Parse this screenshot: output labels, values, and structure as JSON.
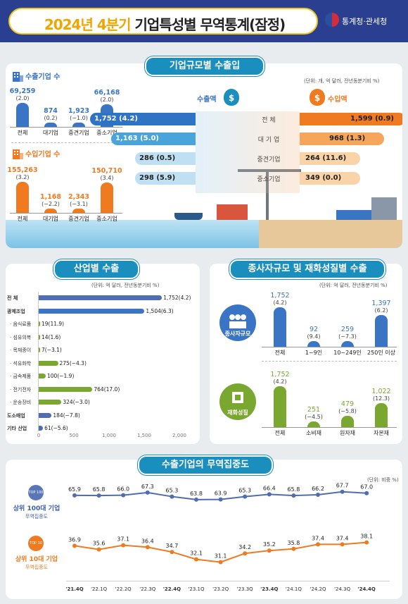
{
  "header": {
    "title_year": "2024년 4분기",
    "title_rest": "기업특성별 무역통계(잠정)",
    "agency": "통계청·관세청"
  },
  "size_section": {
    "title": "기업규모별 수출입",
    "unit": "(단위: 개, 억 달러, 전년동분기비 %)",
    "export_count_label": "수출기업 수",
    "import_count_label": "수입기업 수",
    "export_counts": [
      {
        "value": "69,259",
        "change": "(2.0)",
        "label": "전체"
      },
      {
        "value": "874",
        "change": "(0.2)",
        "label": "대기업"
      },
      {
        "value": "1,923",
        "change": "(−1.0)",
        "label": "중견기업"
      },
      {
        "value": "66,168",
        "change": "(2.0)",
        "label": "중소기업"
      }
    ],
    "import_counts": [
      {
        "value": "155,263",
        "change": "(3.2)",
        "label": "전체"
      },
      {
        "value": "1,168",
        "change": "(−2.2)",
        "label": "대기업"
      },
      {
        "value": "2,343",
        "change": "(−3.1)",
        "label": "중견기업"
      },
      {
        "value": "150,710",
        "change": "(3.4)",
        "label": "중소기업"
      }
    ],
    "export_amount_label": "수출액",
    "import_amount_label": "수입액",
    "rows": [
      {
        "label": "전  체",
        "export": "1,752",
        "export_change": "(4.2)",
        "import": "1,599",
        "import_change": "(0.9)"
      },
      {
        "label": "대 기 업",
        "export": "1,163",
        "export_change": "(5.0)",
        "import": "968",
        "import_change": "(1.3)"
      },
      {
        "label": "중견기업",
        "export": "286",
        "export_change": "(0.5)",
        "import": "264",
        "import_change": "(11.6)"
      },
      {
        "label": "중소기업",
        "export": "298",
        "export_change": "(5.9)",
        "import": "349",
        "import_change": "(0.0)"
      }
    ]
  },
  "industry_section": {
    "title": "산업별 수출",
    "unit": "(단위: 억 달러, 전년동분기비 %)",
    "axis_ticks": [
      "0",
      "500",
      "1,000",
      "1,500",
      "2,000"
    ]
  },
  "chart_data": [
    {
      "type": "bar",
      "title": "산업별 수출",
      "categories": [
        "전  체",
        "광제조업",
        "· 음식료품",
        "· 섬유의복",
        "· 목재종이",
        "· 석유화학",
        "· 금속제품",
        "· 전기전자",
        "· 운송장비",
        "도소매업",
        "기타 산업"
      ],
      "values": [
        1752,
        1504,
        19,
        14,
        7,
        275,
        100,
        764,
        324,
        184,
        61
      ],
      "value_labels": [
        "1,752(4.2)",
        "1,504(6.3)",
        "19(11.9)",
        "14(1.6)",
        "7(−3.1)",
        "275(−4.3)",
        "100(−1.9)",
        "764(17.0)",
        "324(−3.0)",
        "184(−7.8)",
        "61(−5.6)"
      ],
      "xlim": [
        0,
        2000
      ]
    },
    {
      "type": "bar",
      "title": "종사자규모",
      "categories": [
        "전체",
        "1~9인",
        "10~249인",
        "250인 이상"
      ],
      "values": [
        1752,
        92,
        259,
        1397
      ],
      "value_labels": [
        "1,752",
        "92",
        "259",
        "1,397"
      ],
      "changes": [
        "(4.2)",
        "(9.4)",
        "(−7.3)",
        "(6.2)"
      ]
    },
    {
      "type": "bar",
      "title": "재화성질",
      "categories": [
        "전체",
        "소비재",
        "원자재",
        "자본재"
      ],
      "values": [
        1752,
        251,
        479,
        1022
      ],
      "value_labels": [
        "1,752",
        "251",
        "479",
        "1,022"
      ],
      "changes": [
        "(4.2)",
        "(−4.5)",
        "(−5.8)",
        "(12.3)"
      ]
    },
    {
      "type": "line",
      "title": "수출기업의 무역집중도",
      "x": [
        "'21.4Q",
        "'22.1Q",
        "'22.2Q",
        "'22.3Q",
        "'22.4Q",
        "'23.1Q",
        "'23.2Q",
        "'23.3Q",
        "'23.4Q",
        "'24.1Q",
        "'24.2Q",
        "'24.3Q",
        "'24.4Q"
      ],
      "series": [
        {
          "name": "상위 100대 기업",
          "values": [
            65.9,
            65.8,
            66.0,
            67.3,
            65.3,
            63.8,
            63.9,
            65.3,
            66.4,
            65.8,
            66.2,
            67.7,
            67.0
          ]
        },
        {
          "name": "상위 10대 기업",
          "values": [
            36.9,
            35.6,
            37.1,
            36.4,
            34.7,
            32.1,
            31.1,
            34.2,
            35.2,
            35.8,
            37.4,
            37.4,
            38.1
          ]
        }
      ]
    }
  ],
  "employee_section": {
    "title": "종사자규모 및 재화성질별 수출",
    "unit": "(단위: 억 달러, 전년동분기비 %)",
    "badge1": "종사자규모",
    "badge2": "재화성질"
  },
  "concentration_section": {
    "title": "수출기업의 무역집중도",
    "unit": "(단위: 비중 %)",
    "top100_label": "상위 100대 기업",
    "top100_sub": "무역집중도",
    "top10_label": "상위 10대 기업",
    "top10_sub": "무역집중도",
    "top100_tag": "TOP 100",
    "top10_tag": "TOP 10"
  },
  "colors": {
    "navy": "#2b3f91",
    "blue": "#3a74c4",
    "orange": "#ef7a1f",
    "green": "#7aa730",
    "teal": "#1a8fbd"
  }
}
